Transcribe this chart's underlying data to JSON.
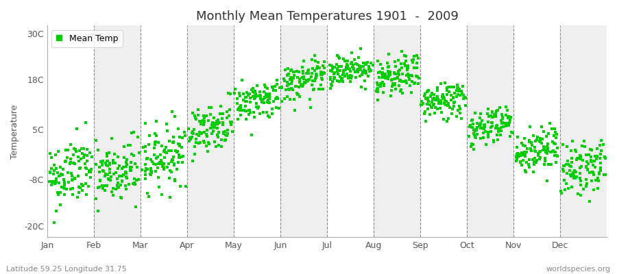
{
  "title": "Monthly Mean Temperatures 1901  -  2009",
  "ylabel": "Temperature",
  "xlabel_labels": [
    "Jan",
    "Feb",
    "Mar",
    "Apr",
    "May",
    "Jun",
    "Jul",
    "Aug",
    "Sep",
    "Oct",
    "Nov",
    "Dec"
  ],
  "ytick_labels": [
    "-20C",
    "-8C",
    "5C",
    "18C",
    "30C"
  ],
  "ytick_values": [
    -20,
    -8,
    5,
    18,
    30
  ],
  "ylim": [
    -23,
    32
  ],
  "dot_color": "#00cc00",
  "dot_size": 5,
  "background_color": "#ffffff",
  "plot_bg_color": "#efefef",
  "alt_band_color": "#ffffff",
  "legend_label": "Mean Temp",
  "footer_left": "Latitude 59.25 Longitude 31.75",
  "footer_right": "worldspecies.org",
  "num_years": 109,
  "monthly_means": [
    -7.5,
    -7.5,
    -3.0,
    4.5,
    11.5,
    16.5,
    19.5,
    17.5,
    11.5,
    5.0,
    -1.5,
    -6.0
  ],
  "monthly_stds": [
    4.5,
    4.5,
    4.0,
    3.0,
    2.5,
    2.5,
    2.0,
    2.5,
    2.5,
    2.5,
    3.0,
    3.5
  ],
  "monthly_trends": [
    0.02,
    0.02,
    0.02,
    0.02,
    0.02,
    0.02,
    0.02,
    0.02,
    0.02,
    0.02,
    0.02,
    0.02
  ],
  "seed": 42
}
